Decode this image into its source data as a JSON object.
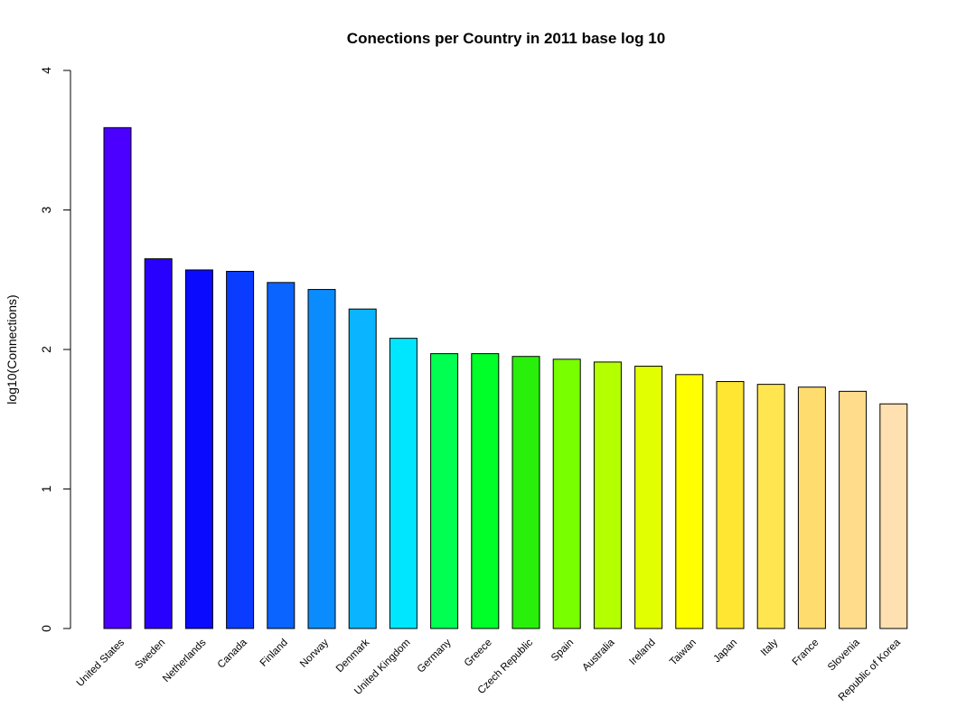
{
  "chart_data": {
    "type": "bar",
    "title": "Conections per Country in 2011 base log 10",
    "xlabel": "",
    "ylabel": "log10(Connections)",
    "ylim": [
      0,
      4
    ],
    "yticks": [
      0,
      1,
      2,
      3,
      4
    ],
    "grid": false,
    "categories": [
      "United States",
      "Sweden",
      "Netherlands",
      "Canada",
      "Finland",
      "Norway",
      "Denmark",
      "United Kingdom",
      "Germany",
      "Greece",
      "Czech Republic",
      "Spain",
      "Australia",
      "Ireland",
      "Taiwan",
      "Japan",
      "Italy",
      "France",
      "Slovenia",
      "Republic of Korea"
    ],
    "values": [
      3.59,
      2.65,
      2.57,
      2.56,
      2.48,
      2.43,
      2.29,
      2.08,
      1.97,
      1.97,
      1.95,
      1.93,
      1.91,
      1.88,
      1.82,
      1.77,
      1.75,
      1.73,
      1.7,
      1.61
    ],
    "colors": [
      "#4B00FF",
      "#2800FF",
      "#0A0AFF",
      "#0A3CFF",
      "#0A64FF",
      "#0A8CFF",
      "#0AB4FF",
      "#00E6FF",
      "#00FF50",
      "#00FF28",
      "#28F00A",
      "#78FF00",
      "#B4FF00",
      "#E1FF00",
      "#FFFF00",
      "#FFE632",
      "#FFE650",
      "#FFDC6E",
      "#FFDC8C",
      "#FFE0B0"
    ]
  }
}
